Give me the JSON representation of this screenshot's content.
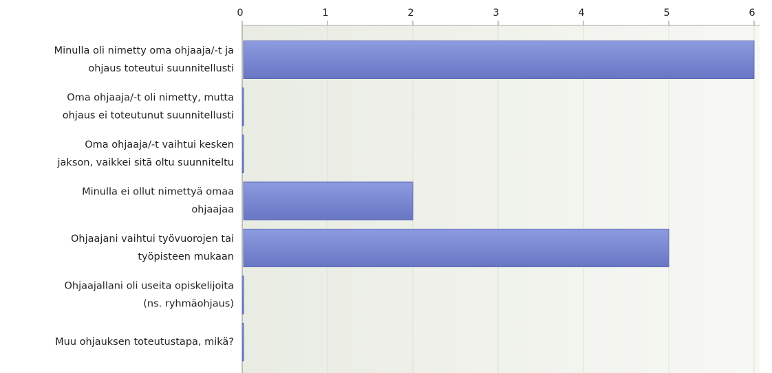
{
  "chart_data": {
    "type": "bar",
    "orientation": "horizontal",
    "categories": [
      [
        "Minulla oli nimetty oma ohjaaja/-t ja",
        "ohjaus toteutui suunnitellusti"
      ],
      [
        "Oma ohjaaja/-t oli nimetty, mutta",
        "ohjaus ei toteutunut suunnitellusti"
      ],
      [
        "Oma ohjaaja/-t vaihtui kesken",
        "jakson, vaikkei sitä oltu suunniteltu"
      ],
      [
        "Minulla ei ollut nimettyä omaa",
        "ohjaajaa"
      ],
      [
        "Ohjaajani vaihtui työvuorojen tai",
        "työpisteen mukaan"
      ],
      [
        "Ohjaajallani oli useita opiskelijoita",
        "(ns. ryhmäohjaus)"
      ],
      [
        "Muu ohjauksen toteutustapa, mikä?"
      ]
    ],
    "values": [
      6,
      0,
      0,
      2,
      5,
      0,
      0
    ],
    "color": "#7f8ed6",
    "xlim": [
      0,
      6
    ],
    "xticks": [
      0,
      1,
      2,
      3,
      4,
      5,
      6
    ],
    "grid": true
  }
}
